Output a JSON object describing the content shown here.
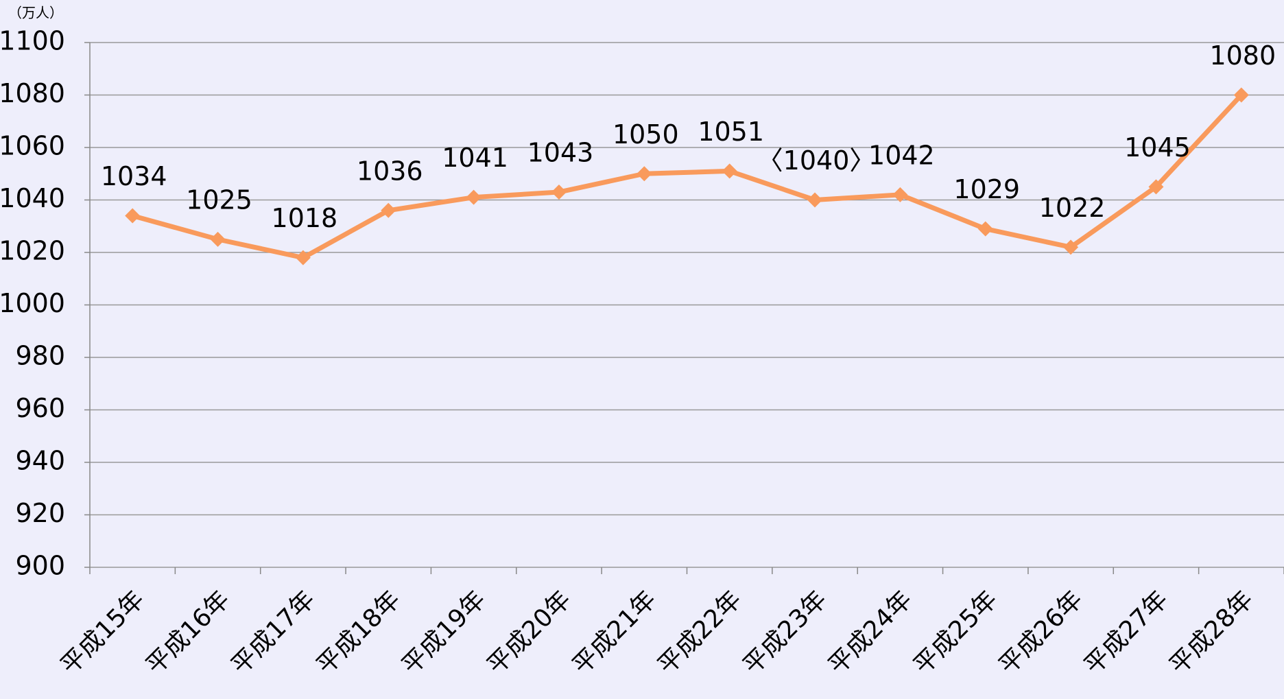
{
  "chart_data": {
    "type": "line",
    "y_label": "（万人）",
    "categories": [
      "平成15年",
      "平成16年",
      "平成17年",
      "平成18年",
      "平成19年",
      "平成20年",
      "平成21年",
      "平成22年",
      "平成23年",
      "平成24年",
      "平成25年",
      "平成26年",
      "平成27年",
      "平成28年"
    ],
    "values": [
      1034,
      1025,
      1018,
      1036,
      1041,
      1043,
      1050,
      1051,
      1040,
      1042,
      1029,
      1022,
      1045,
      1080
    ],
    "value_labels": [
      "1034",
      "1025",
      "1018",
      "1036",
      "1041",
      "1043",
      "1050",
      "1051",
      "〈1040〉",
      "1042",
      "1029",
      "1022",
      "1045",
      "1080"
    ],
    "color": "#f99a5c",
    "ylim": [
      900,
      1100
    ],
    "yticks": [
      900,
      920,
      940,
      960,
      980,
      1000,
      1020,
      1040,
      1060,
      1080,
      1100
    ],
    "grid": true
  }
}
